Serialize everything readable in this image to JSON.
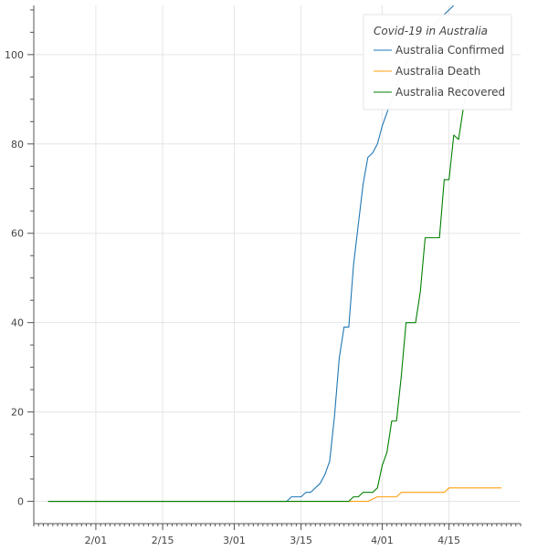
{
  "chart_data": {
    "type": "line",
    "title": "",
    "xlabel": "",
    "ylabel": "",
    "legend": {
      "title": "Covid-19 in Australia",
      "placement": "top-right"
    },
    "x_range": [
      "2020-01-19",
      "2020-04-30"
    ],
    "ylim": [
      -5,
      111
    ],
    "grid": true,
    "x_ticks": [
      {
        "date": "2020-02-01",
        "label": "2/01"
      },
      {
        "date": "2020-02-15",
        "label": "2/15"
      },
      {
        "date": "2020-03-01",
        "label": "3/01"
      },
      {
        "date": "2020-03-15",
        "label": "3/15"
      },
      {
        "date": "2020-04-01",
        "label": "4/01"
      },
      {
        "date": "2020-04-15",
        "label": "4/15"
      }
    ],
    "y_ticks": [
      0,
      20,
      40,
      60,
      80,
      100
    ],
    "series": [
      {
        "name": "Australia Confirmed",
        "color": "#1f77b4",
        "points": [
          [
            "2020-01-22",
            0
          ],
          [
            "2020-03-12",
            0
          ],
          [
            "2020-03-13",
            1
          ],
          [
            "2020-03-14",
            1
          ],
          [
            "2020-03-15",
            1
          ],
          [
            "2020-03-16",
            2
          ],
          [
            "2020-03-17",
            2
          ],
          [
            "2020-03-18",
            3
          ],
          [
            "2020-03-19",
            4
          ],
          [
            "2020-03-20",
            6
          ],
          [
            "2020-03-21",
            9
          ],
          [
            "2020-03-22",
            19
          ],
          [
            "2020-03-23",
            32
          ],
          [
            "2020-03-24",
            39
          ],
          [
            "2020-03-25",
            39
          ],
          [
            "2020-03-26",
            53
          ],
          [
            "2020-03-27",
            62
          ],
          [
            "2020-03-28",
            71
          ],
          [
            "2020-03-29",
            77
          ],
          [
            "2020-03-30",
            78
          ],
          [
            "2020-03-31",
            80
          ],
          [
            "2020-04-01",
            84
          ],
          [
            "2020-04-02",
            87
          ],
          [
            "2020-04-03",
            90
          ],
          [
            "2020-04-04",
            93
          ],
          [
            "2020-04-05",
            96
          ],
          [
            "2020-04-06",
            98
          ],
          [
            "2020-04-07",
            100
          ],
          [
            "2020-04-08",
            102
          ],
          [
            "2020-04-09",
            104
          ],
          [
            "2020-04-10",
            105
          ],
          [
            "2020-04-11",
            106
          ],
          [
            "2020-04-12",
            107
          ],
          [
            "2020-04-13",
            108
          ],
          [
            "2020-04-14",
            109
          ],
          [
            "2020-04-15",
            110
          ],
          [
            "2020-04-16",
            111
          ]
        ]
      },
      {
        "name": "Australia Death",
        "color": "#ff9f0e",
        "points": [
          [
            "2020-01-22",
            0
          ],
          [
            "2020-03-29",
            0
          ],
          [
            "2020-03-31",
            1
          ],
          [
            "2020-04-04",
            1
          ],
          [
            "2020-04-05",
            2
          ],
          [
            "2020-04-14",
            2
          ],
          [
            "2020-04-15",
            3
          ],
          [
            "2020-04-26",
            3
          ]
        ]
      },
      {
        "name": "Australia Recovered",
        "color": "#008000",
        "points": [
          [
            "2020-01-22",
            0
          ],
          [
            "2020-03-25",
            0
          ],
          [
            "2020-03-26",
            1
          ],
          [
            "2020-03-27",
            1
          ],
          [
            "2020-03-28",
            2
          ],
          [
            "2020-03-29",
            2
          ],
          [
            "2020-03-30",
            2
          ],
          [
            "2020-03-31",
            3
          ],
          [
            "2020-04-01",
            8
          ],
          [
            "2020-04-02",
            11
          ],
          [
            "2020-04-03",
            18
          ],
          [
            "2020-04-04",
            18
          ],
          [
            "2020-04-05",
            28
          ],
          [
            "2020-04-06",
            40
          ],
          [
            "2020-04-07",
            40
          ],
          [
            "2020-04-08",
            40
          ],
          [
            "2020-04-09",
            47
          ],
          [
            "2020-04-10",
            59
          ],
          [
            "2020-04-11",
            59
          ],
          [
            "2020-04-12",
            59
          ],
          [
            "2020-04-13",
            59
          ],
          [
            "2020-04-14",
            72
          ],
          [
            "2020-04-15",
            72
          ],
          [
            "2020-04-16",
            82
          ],
          [
            "2020-04-17",
            81
          ],
          [
            "2020-04-18",
            88
          ],
          [
            "2020-04-19",
            94
          ],
          [
            "2020-04-20",
            98
          ],
          [
            "2020-04-21",
            102
          ],
          [
            "2020-04-22",
            106
          ]
        ]
      }
    ]
  }
}
